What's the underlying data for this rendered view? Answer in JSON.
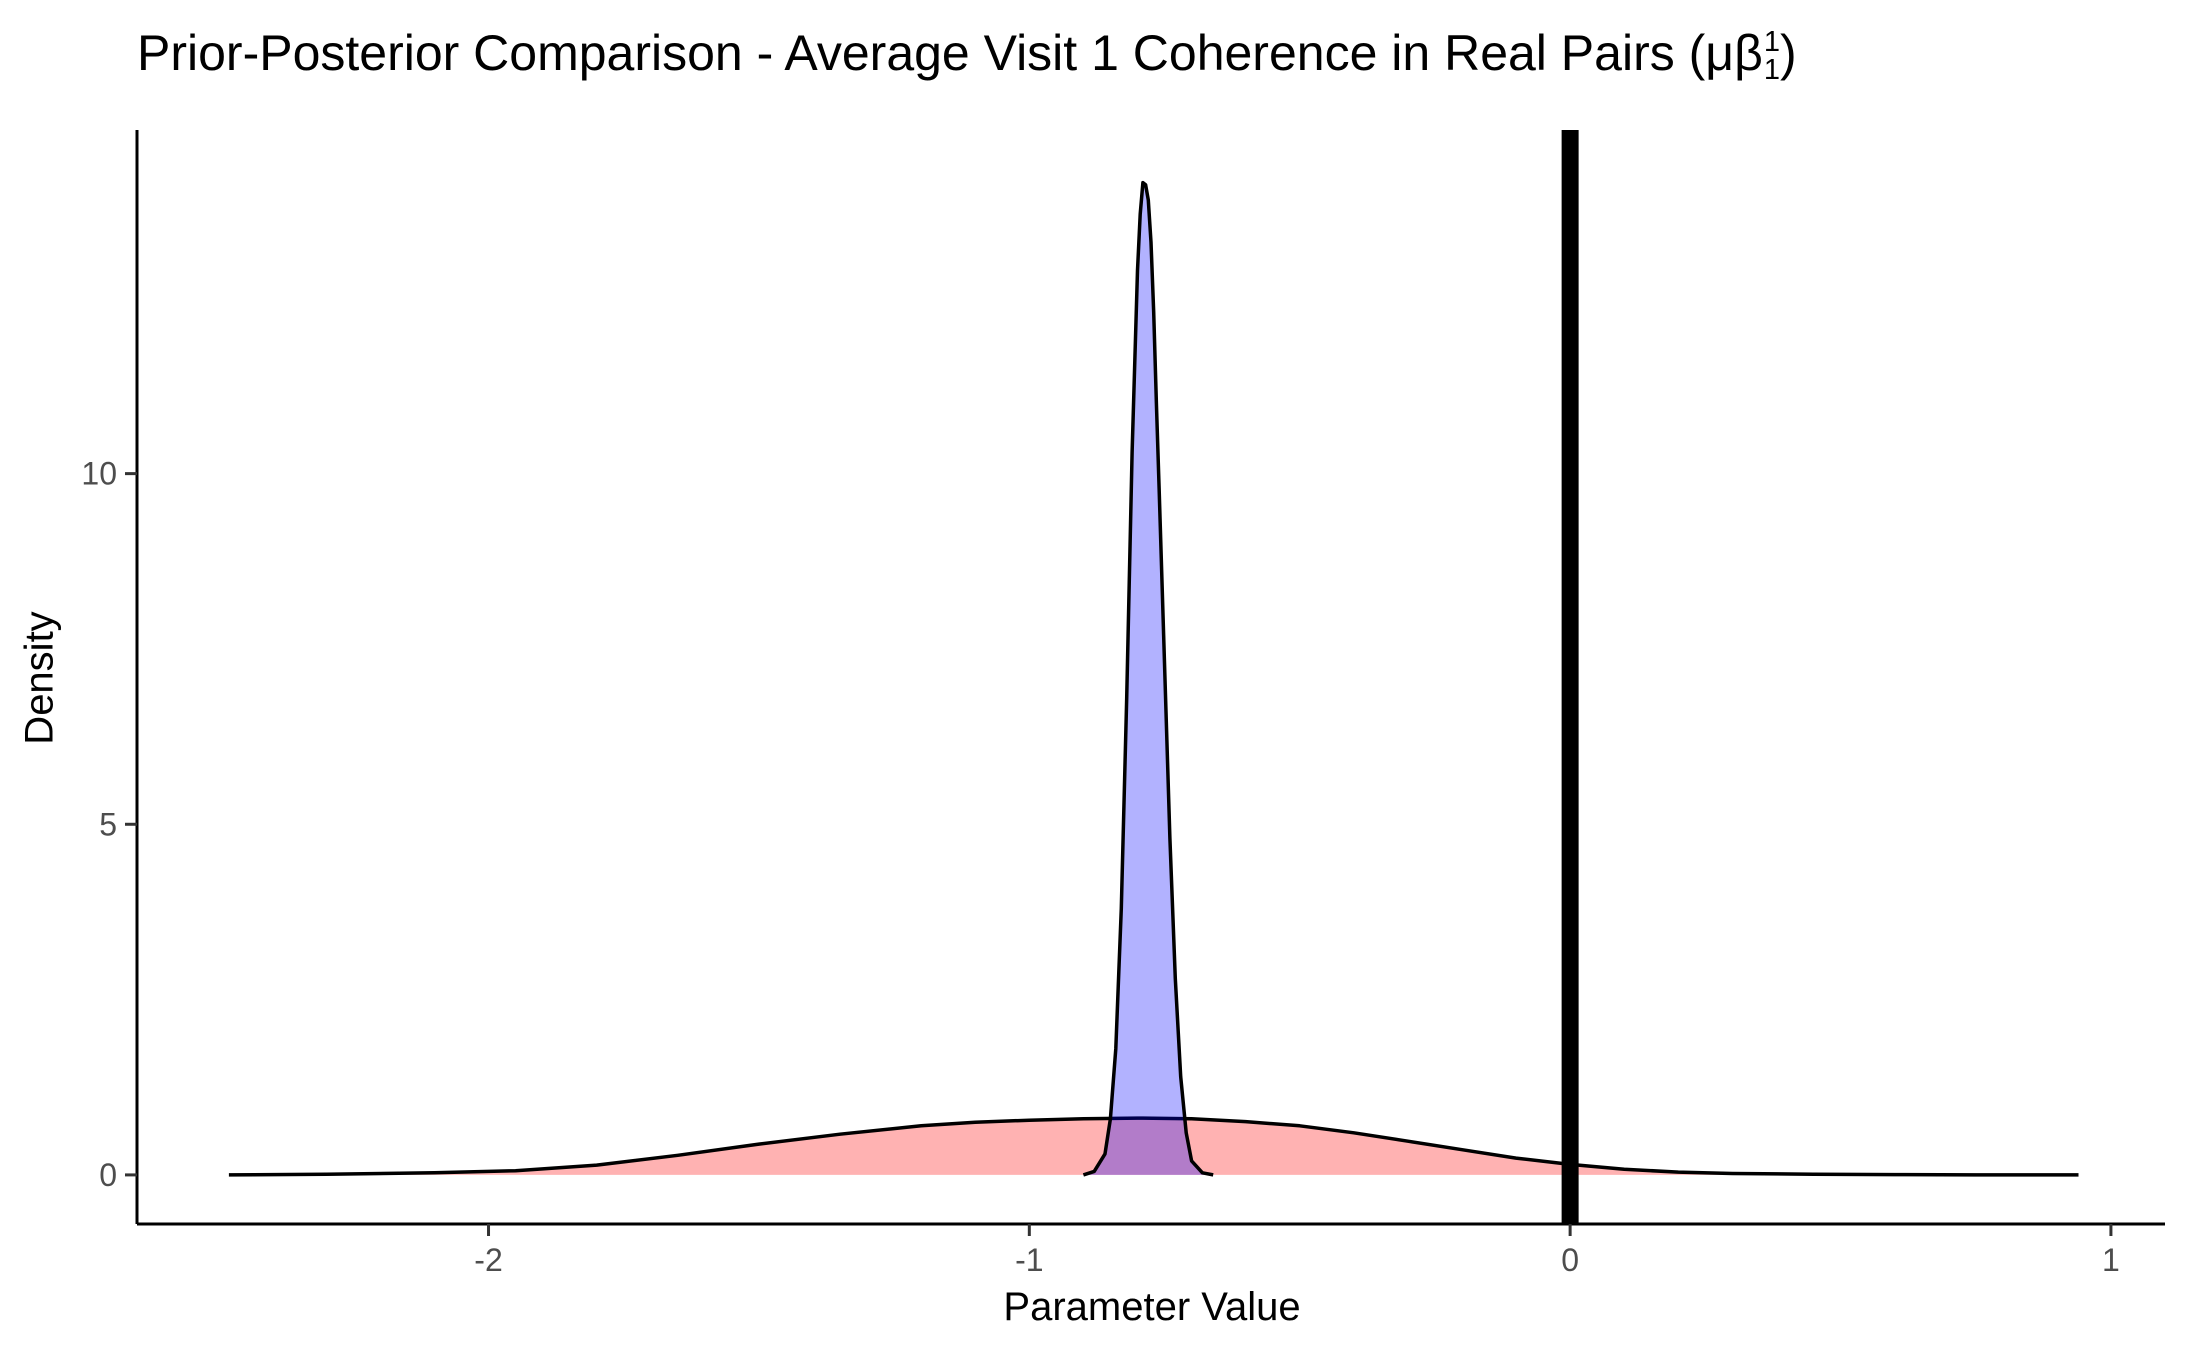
{
  "chart_data": {
    "type": "area",
    "title_prefix": "Prior-Posterior Comparison - Average Visit 1 Coherence in Real Pairs (μβ",
    "title_sup": "1",
    "title_sub": "1",
    "title_suffix": ")",
    "xlabel": "Parameter Value",
    "ylabel": "Density",
    "xlim": [
      -2.65,
      1.1
    ],
    "ylim": [
      -0.7,
      14.9
    ],
    "x_ticks": [
      -2,
      -1,
      0,
      1
    ],
    "x_tick_labels": [
      "-2",
      "-1",
      "0",
      "1"
    ],
    "y_ticks": [
      0,
      5,
      10
    ],
    "y_tick_labels": [
      "0",
      "5",
      "10"
    ],
    "vline": {
      "x": 0,
      "color": "#000000"
    },
    "grid": false,
    "legend": "none",
    "series": [
      {
        "role": "prior",
        "fill": "#ff0000",
        "fill_opacity": 0.3,
        "x": [
          -2.48,
          -2.3,
          -2.1,
          -1.95,
          -1.8,
          -1.65,
          -1.5,
          -1.35,
          -1.2,
          -1.1,
          -1.0,
          -0.9,
          -0.8,
          -0.7,
          -0.6,
          -0.5,
          -0.4,
          -0.3,
          -0.2,
          -0.1,
          0.0,
          0.1,
          0.2,
          0.3,
          0.45,
          0.6,
          0.75,
          0.94
        ],
        "y": [
          0.0,
          0.01,
          0.03,
          0.06,
          0.14,
          0.28,
          0.44,
          0.58,
          0.7,
          0.75,
          0.78,
          0.8,
          0.81,
          0.8,
          0.76,
          0.7,
          0.6,
          0.48,
          0.36,
          0.24,
          0.15,
          0.08,
          0.04,
          0.02,
          0.01,
          0.005,
          0.0,
          0.0
        ]
      },
      {
        "role": "posterior",
        "fill": "#0000ff",
        "fill_opacity": 0.3,
        "x": [
          -0.9,
          -0.88,
          -0.86,
          -0.85,
          -0.84,
          -0.83,
          -0.82,
          -0.81,
          -0.8,
          -0.795,
          -0.79,
          -0.785,
          -0.78,
          -0.775,
          -0.77,
          -0.765,
          -0.76,
          -0.75,
          -0.74,
          -0.73,
          -0.72,
          -0.71,
          -0.7,
          -0.68,
          -0.66
        ],
        "y": [
          0.0,
          0.05,
          0.3,
          0.8,
          1.8,
          3.8,
          6.8,
          10.3,
          12.9,
          13.7,
          14.15,
          14.12,
          13.9,
          13.3,
          12.3,
          11.0,
          9.8,
          7.3,
          4.8,
          2.8,
          1.4,
          0.6,
          0.2,
          0.03,
          0.0
        ]
      }
    ]
  }
}
